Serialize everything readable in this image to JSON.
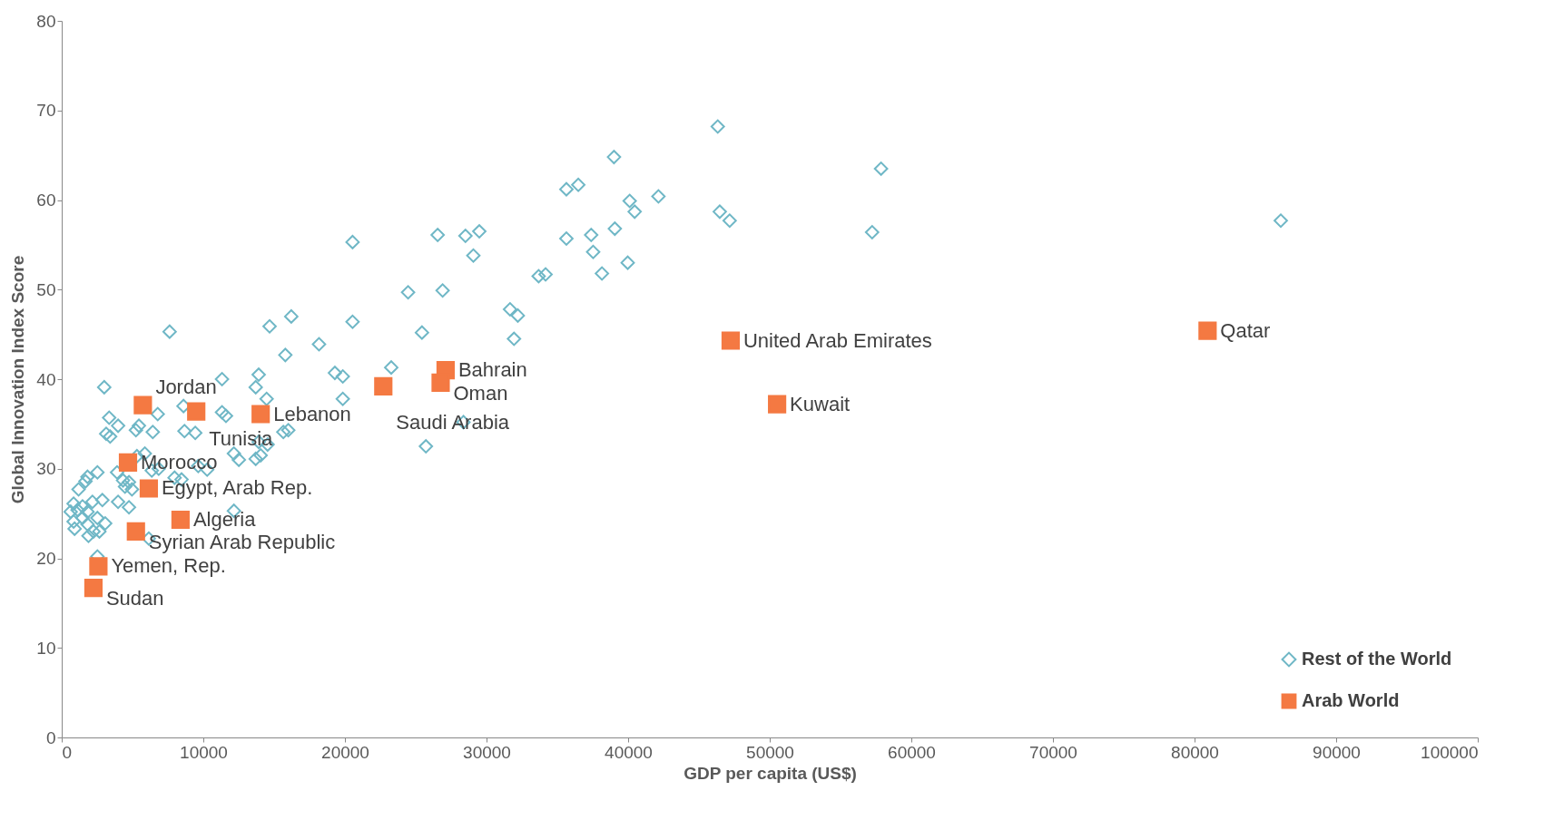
{
  "chart_data": {
    "type": "scatter",
    "xlabel": "GDP per capita (US$)",
    "ylabel": "Global Innovation Index Score",
    "xlim": [
      0,
      100000
    ],
    "xticks": [
      0,
      10000,
      20000,
      30000,
      40000,
      50000,
      60000,
      70000,
      80000,
      90000,
      100000
    ],
    "ylim": [
      0,
      80
    ],
    "yticks": [
      0,
      10,
      20,
      30,
      40,
      50,
      60,
      70,
      80
    ],
    "grid": false,
    "legend": "bottom right",
    "series": [
      {
        "name": "Rest of the World",
        "color": "#6fb7c6",
        "marker": "diamond",
        "x": [
          46330,
          39000,
          57860,
          35640,
          36480,
          40110,
          42140,
          40460,
          46470,
          47170,
          86090,
          57230,
          39060,
          37390,
          35640,
          29490,
          28510,
          26550,
          20540,
          29070,
          37530,
          39970,
          38150,
          33680,
          34170,
          26900,
          24460,
          31660,
          32210,
          16210,
          14680,
          7620,
          25440,
          20540,
          31940,
          18170,
          15790,
          23270,
          13910,
          19290,
          19850,
          11320,
          13700,
          3000,
          19850,
          14470,
          28370,
          25720,
          8600,
          11320,
          11600,
          3350,
          6780,
          3980,
          3420,
          3140,
          5240,
          6430,
          8670,
          9430,
          5450,
          16000,
          15650,
          14540,
          13910,
          13700,
          14050,
          12160,
          12510,
          5870,
          5310,
          3910,
          6360,
          6850,
          7970,
          8460,
          9640,
          10270,
          2520,
          1820,
          1680,
          1190,
          4330,
          4750,
          4470,
          4960,
          3980,
          4750,
          12160,
          2870,
          2170,
          840,
          1120,
          1470,
          1820,
          630,
          2520,
          3070,
          840,
          1470,
          1820,
          910,
          1890,
          2660,
          2240,
          6150,
          2520
        ],
        "values": [
          68.2,
          64.8,
          63.5,
          61.2,
          61.7,
          59.9,
          60.4,
          58.7,
          58.7,
          57.7,
          57.7,
          56.4,
          56.8,
          56.1,
          55.7,
          56.5,
          56.0,
          56.1,
          55.3,
          53.8,
          54.2,
          53.0,
          51.8,
          51.5,
          51.7,
          49.9,
          49.7,
          47.8,
          47.1,
          47.0,
          45.9,
          45.3,
          45.2,
          46.4,
          44.5,
          43.9,
          42.7,
          41.3,
          40.5,
          40.7,
          40.3,
          40.0,
          39.1,
          39.1,
          37.8,
          37.8,
          35.2,
          32.5,
          37.0,
          36.3,
          35.9,
          35.7,
          36.1,
          34.8,
          33.6,
          33.9,
          34.3,
          34.1,
          34.2,
          34.0,
          34.8,
          34.3,
          34.1,
          32.7,
          33.0,
          31.1,
          31.5,
          31.7,
          31.0,
          31.7,
          31.4,
          29.6,
          29.8,
          30.0,
          29.0,
          28.8,
          30.3,
          29.9,
          29.6,
          29.1,
          28.6,
          27.7,
          28.7,
          28.5,
          28.0,
          27.7,
          26.3,
          25.7,
          25.3,
          26.5,
          26.3,
          26.1,
          25.4,
          25.8,
          25.2,
          25.2,
          24.5,
          23.9,
          24.1,
          24.5,
          23.8,
          23.3,
          22.5,
          23.0,
          23.0,
          22.2,
          20.2
        ]
      },
      {
        "name": "Arab World",
        "color": "#f47942",
        "marker": "square",
        "x": [
          5730,
          9500,
          14050,
          4680,
          6150,
          8390,
          5240,
          2590,
          2240,
          22710,
          27110,
          26760,
          47240,
          50520,
          80920
        ],
        "values": [
          37.1,
          36.4,
          36.1,
          30.7,
          27.8,
          24.3,
          23.0,
          19.1,
          16.7,
          39.2,
          41.0,
          39.6,
          44.3,
          37.2,
          45.4
        ]
      }
    ],
    "annotations": [
      {
        "text": "Jordan",
        "x": 5730,
        "y": 37.1
      },
      {
        "text": "Tunisia",
        "x": 9500,
        "y": 36.4
      },
      {
        "text": "Lebanon",
        "x": 14050,
        "y": 36.1
      },
      {
        "text": "Morocco",
        "x": 4680,
        "y": 30.7
      },
      {
        "text": "Egypt, Arab Rep.",
        "x": 6150,
        "y": 27.8
      },
      {
        "text": "Algeria",
        "x": 8390,
        "y": 24.3
      },
      {
        "text": "Syrian Arab Republic",
        "x": 5240,
        "y": 23.0
      },
      {
        "text": "Yemen, Rep.",
        "x": 2590,
        "y": 19.1
      },
      {
        "text": "Sudan",
        "x": 2240,
        "y": 16.7
      },
      {
        "text": "Saudi Arabia",
        "x": 22710,
        "y": 39.2
      },
      {
        "text": "Bahrain",
        "x": 27110,
        "y": 41.0
      },
      {
        "text": "Oman",
        "x": 26760,
        "y": 39.6
      },
      {
        "text": "United Arab Emirates",
        "x": 47240,
        "y": 44.3
      },
      {
        "text": "Kuwait",
        "x": 50520,
        "y": 37.2
      },
      {
        "text": "Qatar",
        "x": 80920,
        "y": 45.4
      }
    ]
  }
}
